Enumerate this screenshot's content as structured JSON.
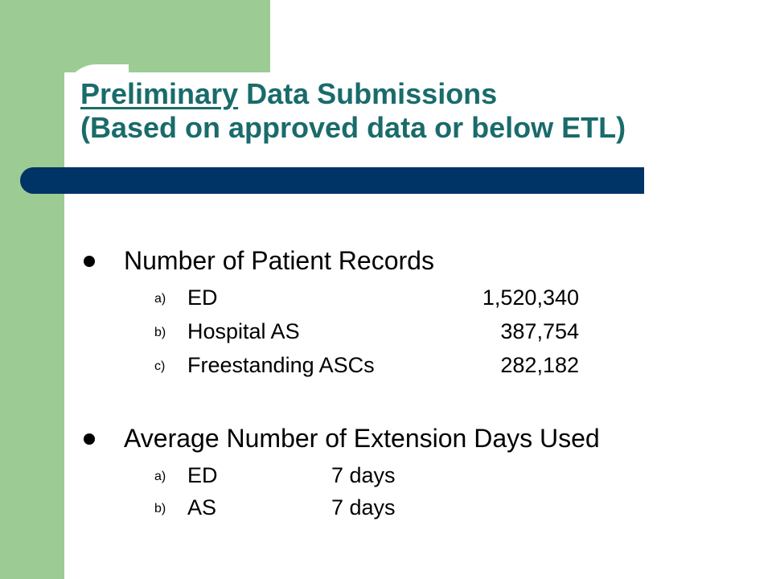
{
  "title": {
    "underlined_word": "Preliminary",
    "line1_rest": " Data Submissions",
    "line2": "(Based on approved data or below ETL)"
  },
  "colors": {
    "green_band": "#9ccc94",
    "title_teal": "#1a6b6b",
    "divider_navy": "#003366"
  },
  "sections": [
    {
      "heading": "Number of Patient Records",
      "items": [
        {
          "letter": "a)",
          "label": "ED",
          "value": "1,520,340"
        },
        {
          "letter": "b)",
          "label": "Hospital AS",
          "value": "387,754"
        },
        {
          "letter": "c)",
          "label": "Freestanding ASCs",
          "value": "282,182"
        }
      ]
    },
    {
      "heading": "Average Number of Extension Days Used",
      "items": [
        {
          "letter": "a)",
          "label": "ED",
          "value": "7 days"
        },
        {
          "letter": "b)",
          "label": "AS",
          "value": "7 days"
        }
      ]
    }
  ]
}
